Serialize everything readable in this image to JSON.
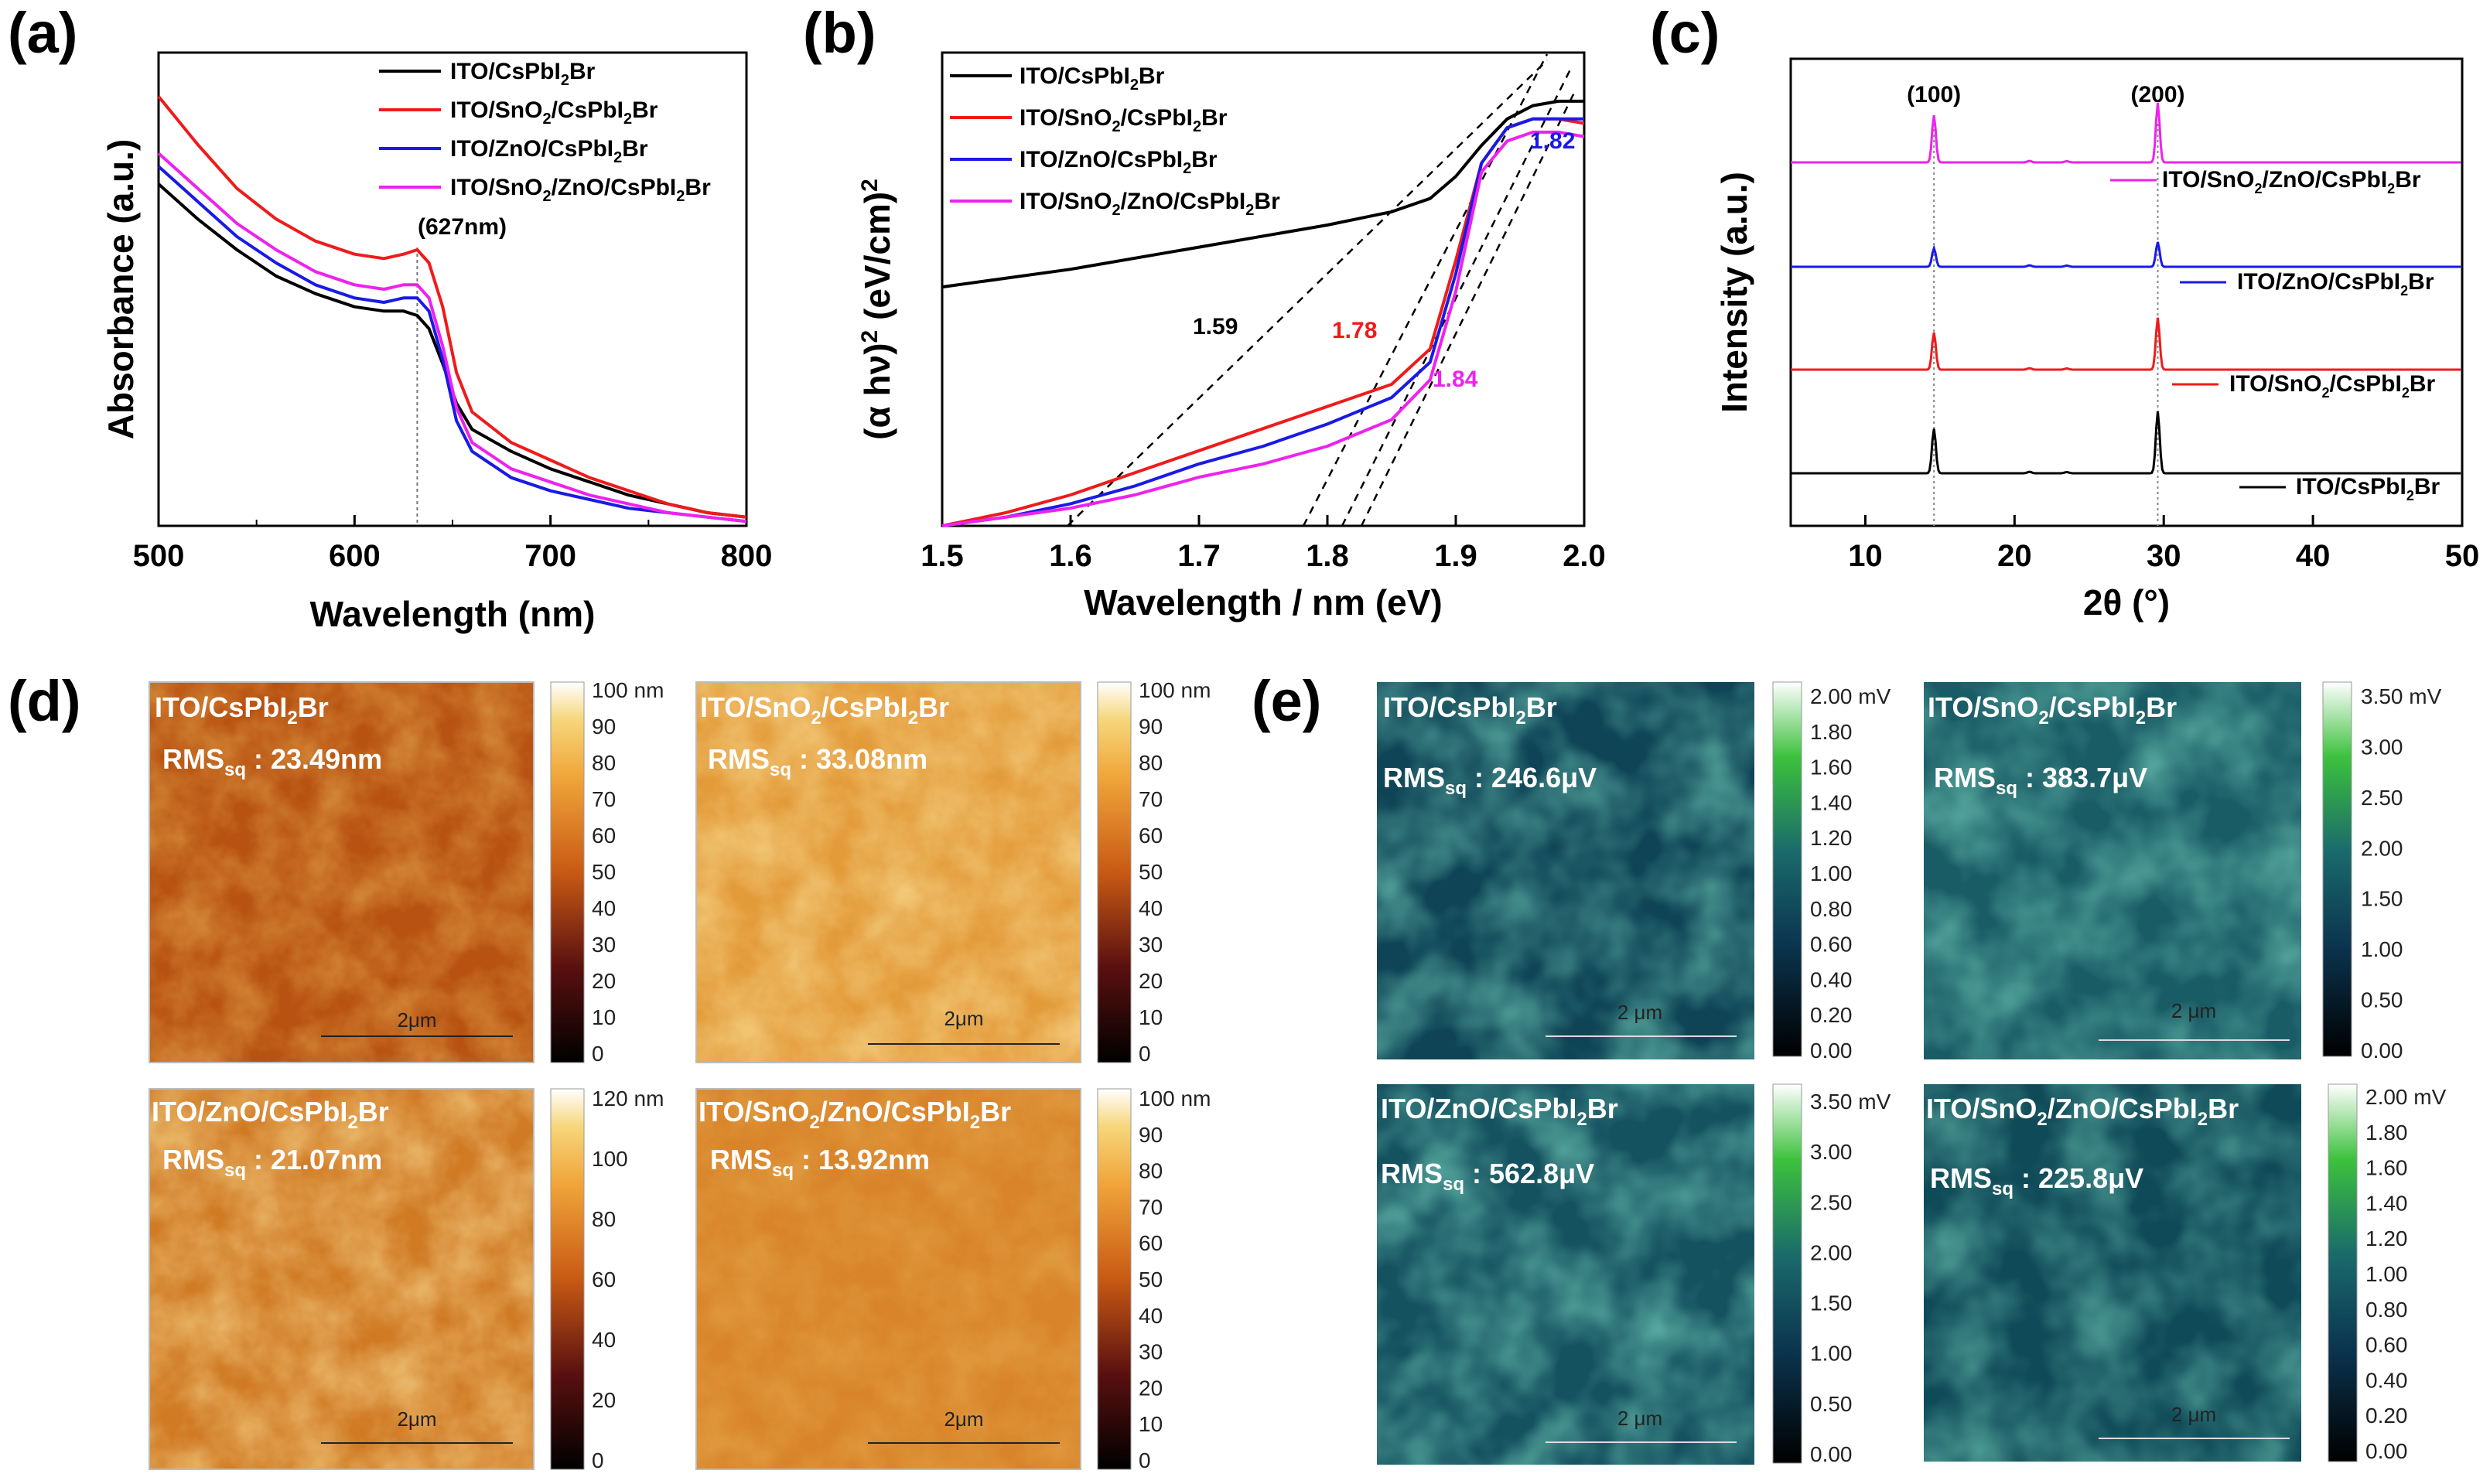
{
  "panels": {
    "a": "(a)",
    "b": "(b)",
    "c": "(c)",
    "d": "(d)",
    "e": "(e)"
  },
  "colors": {
    "black": "#000000",
    "red": "#ef1b1b",
    "blue": "#1a1ae6",
    "magenta": "#ee22ee"
  },
  "chart_data": [
    {
      "id": "a",
      "type": "line",
      "xlabel": "Wavelength (nm)",
      "ylabel": "Absorbance (a.u.)",
      "xlim": [
        500,
        800
      ],
      "xticks": [
        500,
        600,
        700,
        800
      ],
      "annotation": "(627nm)",
      "annotation_x": 632,
      "series": [
        {
          "name": "ITO/CsPbI2Br",
          "color": "black",
          "x": [
            500,
            520,
            540,
            560,
            580,
            600,
            615,
            625,
            632,
            638,
            645,
            652,
            660,
            680,
            700,
            720,
            740,
            760,
            780,
            800
          ],
          "y": [
            0.78,
            0.7,
            0.63,
            0.57,
            0.53,
            0.5,
            0.49,
            0.49,
            0.48,
            0.45,
            0.37,
            0.28,
            0.22,
            0.17,
            0.13,
            0.1,
            0.07,
            0.05,
            0.03,
            0.02
          ]
        },
        {
          "name": "ITO/SnO2/CsPbI2Br",
          "color": "red",
          "x": [
            500,
            520,
            540,
            560,
            580,
            600,
            615,
            625,
            632,
            638,
            645,
            652,
            660,
            680,
            700,
            720,
            740,
            760,
            780,
            800
          ],
          "y": [
            0.98,
            0.87,
            0.77,
            0.7,
            0.65,
            0.62,
            0.61,
            0.62,
            0.63,
            0.6,
            0.5,
            0.35,
            0.26,
            0.19,
            0.15,
            0.11,
            0.08,
            0.05,
            0.03,
            0.02
          ]
        },
        {
          "name": "ITO/ZnO/CsPbI2Br",
          "color": "blue",
          "x": [
            500,
            520,
            540,
            560,
            580,
            600,
            615,
            625,
            632,
            638,
            645,
            652,
            660,
            680,
            700,
            720,
            740,
            760,
            780,
            800
          ],
          "y": [
            0.82,
            0.74,
            0.66,
            0.6,
            0.55,
            0.52,
            0.51,
            0.52,
            0.52,
            0.49,
            0.38,
            0.24,
            0.17,
            0.11,
            0.08,
            0.06,
            0.04,
            0.03,
            0.02,
            0.01
          ]
        },
        {
          "name": "ITO/SnO2/ZnO/CsPbI2Br",
          "color": "magenta",
          "x": [
            500,
            520,
            540,
            560,
            580,
            600,
            615,
            625,
            632,
            638,
            645,
            652,
            660,
            680,
            700,
            720,
            740,
            760,
            780,
            800
          ],
          "y": [
            0.85,
            0.77,
            0.69,
            0.63,
            0.58,
            0.55,
            0.54,
            0.55,
            0.55,
            0.52,
            0.41,
            0.27,
            0.19,
            0.13,
            0.1,
            0.07,
            0.05,
            0.03,
            0.02,
            0.01
          ]
        }
      ]
    },
    {
      "id": "b",
      "type": "line",
      "xlabel": "Wavelength / nm (eV)",
      "ylabel": "(α hν)² (eV/cm)²",
      "xlim": [
        1.5,
        2.0
      ],
      "xticks": [
        1.5,
        1.6,
        1.7,
        1.8,
        1.9,
        2.0
      ],
      "bandgaps": [
        {
          "label": "1.59",
          "color": "black"
        },
        {
          "label": "1.78",
          "color": "red"
        },
        {
          "label": "1.82",
          "color": "blue"
        },
        {
          "label": "1.84",
          "color": "magenta"
        }
      ],
      "series": [
        {
          "name": "ITO/CsPbI2Br",
          "color": "black",
          "x": [
            1.5,
            1.6,
            1.7,
            1.8,
            1.85,
            1.88,
            1.9,
            1.92,
            1.94,
            1.96,
            1.98,
            2.0
          ],
          "y": [
            0.54,
            0.58,
            0.63,
            0.68,
            0.71,
            0.74,
            0.79,
            0.86,
            0.92,
            0.95,
            0.96,
            0.96
          ]
        },
        {
          "name": "ITO/SnO2/CsPbI2Br",
          "color": "red",
          "x": [
            1.5,
            1.55,
            1.6,
            1.65,
            1.7,
            1.75,
            1.8,
            1.85,
            1.88,
            1.9,
            1.92,
            1.94,
            1.96,
            1.98,
            2.0
          ],
          "y": [
            0.0,
            0.03,
            0.07,
            0.12,
            0.17,
            0.22,
            0.27,
            0.32,
            0.4,
            0.6,
            0.82,
            0.9,
            0.92,
            0.92,
            0.91
          ]
        },
        {
          "name": "ITO/ZnO/CsPbI2Br",
          "color": "blue",
          "x": [
            1.5,
            1.55,
            1.6,
            1.65,
            1.7,
            1.75,
            1.8,
            1.85,
            1.88,
            1.9,
            1.92,
            1.94,
            1.96,
            1.98,
            2.0
          ],
          "y": [
            0.0,
            0.02,
            0.05,
            0.09,
            0.14,
            0.18,
            0.23,
            0.29,
            0.37,
            0.57,
            0.82,
            0.9,
            0.92,
            0.92,
            0.92
          ]
        },
        {
          "name": "ITO/SnO2/ZnO/CsPbI2Br",
          "color": "magenta",
          "x": [
            1.5,
            1.55,
            1.6,
            1.65,
            1.7,
            1.75,
            1.8,
            1.85,
            1.88,
            1.9,
            1.92,
            1.94,
            1.96,
            1.98,
            2.0
          ],
          "y": [
            0.0,
            0.02,
            0.04,
            0.07,
            0.11,
            0.14,
            0.18,
            0.24,
            0.33,
            0.53,
            0.8,
            0.87,
            0.89,
            0.89,
            0.88
          ]
        }
      ]
    },
    {
      "id": "c",
      "type": "line",
      "xlabel": "2θ (°)",
      "ylabel": "Intensity (a.u.)",
      "xlim": [
        5,
        50
      ],
      "xticks": [
        10,
        20,
        30,
        40,
        50
      ],
      "peaks": [
        {
          "label": "(100)",
          "x": 14.6
        },
        {
          "label": "(200)",
          "x": 29.6
        }
      ],
      "series": [
        {
          "name": "ITO/SnO2/ZnO/CsPbI2Br",
          "color": "magenta",
          "offset": 3,
          "peak_heights": [
            0.38,
            0.48
          ]
        },
        {
          "name": "ITO/ZnO/CsPbI2Br",
          "color": "blue",
          "offset": 2,
          "peak_heights": [
            0.15,
            0.2
          ]
        },
        {
          "name": "ITO/SnO2/CsPbI2Br",
          "color": "red",
          "offset": 1,
          "peak_heights": [
            0.3,
            0.42
          ]
        },
        {
          "name": "ITO/CsPbI2Br",
          "color": "black",
          "offset": 0,
          "peak_heights": [
            0.36,
            0.5
          ]
        }
      ]
    }
  ],
  "afm": {
    "scale_label": "2μm",
    "maps": [
      {
        "title": "ITO/CsPbI2Br",
        "rms": "23.49nm",
        "cb_ticks": [
          "100 nm",
          "90",
          "80",
          "70",
          "60",
          "50",
          "40",
          "30",
          "20",
          "10",
          "0"
        ]
      },
      {
        "title": "ITO/SnO2/CsPbI2Br",
        "rms": "33.08nm",
        "cb_ticks": [
          "100 nm",
          "90",
          "80",
          "70",
          "60",
          "50",
          "40",
          "30",
          "20",
          "10",
          "0"
        ]
      },
      {
        "title": "ITO/ZnO/CsPbI2Br",
        "rms": "21.07nm",
        "cb_ticks": [
          "120 nm",
          "100",
          "80",
          "60",
          "40",
          "20",
          "0"
        ]
      },
      {
        "title": "ITO/SnO2/ZnO/CsPbI2Br",
        "rms": "13.92nm",
        "cb_ticks": [
          "100 nm",
          "90",
          "80",
          "70",
          "60",
          "50",
          "40",
          "30",
          "20",
          "10",
          "0"
        ]
      }
    ]
  },
  "kpfm": {
    "scale_label": "2 μm",
    "maps": [
      {
        "title": "ITO/CsPbI2Br",
        "rms": "246.6μV",
        "cb_ticks": [
          "2.00 mV",
          "1.80",
          "1.60",
          "1.40",
          "1.20",
          "1.00",
          "0.80",
          "0.60",
          "0.40",
          "0.20",
          "0.00"
        ]
      },
      {
        "title": "ITO/SnO2/CsPbI2Br",
        "rms": "383.7μV",
        "cb_ticks": [
          "3.50 mV",
          "3.00",
          "2.50",
          "2.00",
          "1.50",
          "1.00",
          "0.50",
          "0.00"
        ]
      },
      {
        "title": "ITO/ZnO/CsPbI2Br",
        "rms": "562.8μV",
        "cb_ticks": [
          "3.50 mV",
          "3.00",
          "2.50",
          "2.00",
          "1.50",
          "1.00",
          "0.50",
          "0.00"
        ]
      },
      {
        "title": "ITO/SnO2/ZnO/CsPbI2Br",
        "rms": "225.8μV",
        "cb_ticks": [
          "2.00 mV",
          "1.80",
          "1.60",
          "1.40",
          "1.20",
          "1.00",
          "0.80",
          "0.60",
          "0.40",
          "0.20",
          "0.00"
        ]
      }
    ]
  },
  "rms_prefix": "RMS",
  "rms_sub": "sq"
}
